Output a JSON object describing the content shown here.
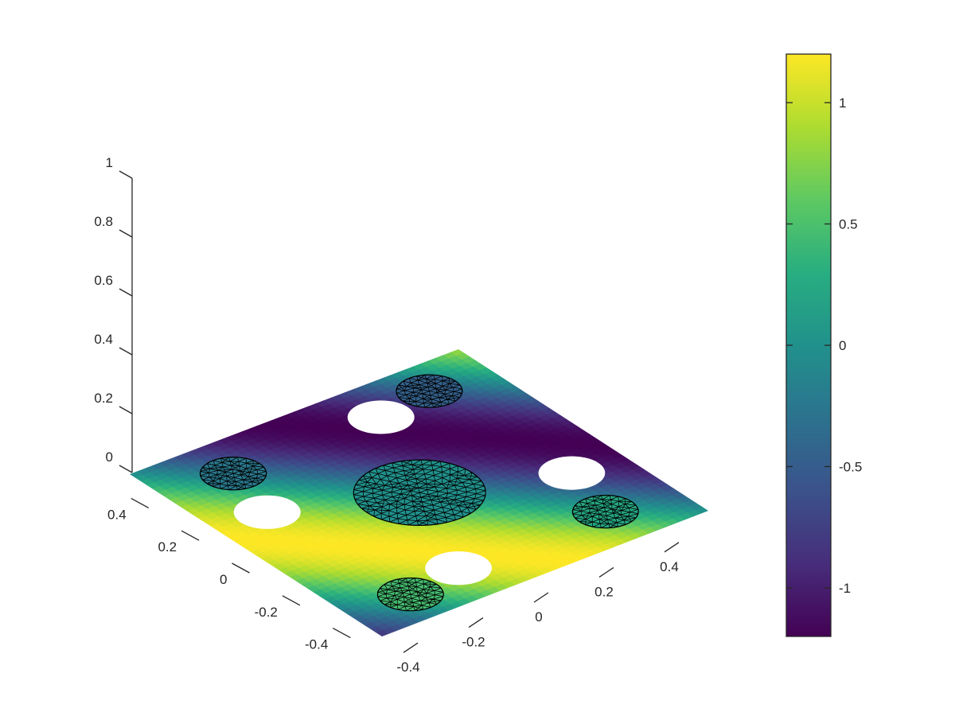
{
  "chart_data": {
    "type": "surface3d",
    "title": "",
    "xlabel": "",
    "ylabel": "",
    "zlabel": "",
    "x_range": [
      -0.5,
      0.5
    ],
    "y_range": [
      -0.5,
      0.5
    ],
    "z_range": [
      0,
      1
    ],
    "x_ticks": [
      "-0.4",
      "-0.2",
      "0",
      "0.2",
      "0.4"
    ],
    "y_ticks": [
      "-0.4",
      "-0.2",
      "0",
      "0.2",
      "0.4"
    ],
    "z_ticks": [
      "0",
      "0.2",
      "0.4",
      "0.6",
      "0.8",
      "1"
    ],
    "colormap": "viridis",
    "color_range": [
      -1.2,
      1.2
    ],
    "colorbar_ticks": [
      "1",
      "0.5",
      "0",
      "-0.5",
      "-1"
    ],
    "grid": false,
    "surface": "u(x,y) = 1.2*sin(2.5*pi*(x - y)/2) on unit square, z = 0",
    "holes": [
      {
        "x": 0.35,
        "y": -0.15,
        "r": 0.08
      },
      {
        "x": 0.15,
        "y": 0.35,
        "r": 0.08
      },
      {
        "x": -0.15,
        "y": -0.35,
        "r": 0.08
      },
      {
        "x": -0.35,
        "y": 0.15,
        "r": 0.08
      }
    ],
    "meshed_disks": [
      {
        "x": 0.0,
        "y": 0.0,
        "r": 0.16
      },
      {
        "x": 0.35,
        "y": 0.3,
        "r": 0.08
      },
      {
        "x": -0.35,
        "y": -0.3,
        "r": 0.08
      },
      {
        "x": 0.38,
        "y": -0.32,
        "r": 0.08
      },
      {
        "x": -0.38,
        "y": 0.32,
        "r": 0.08
      }
    ]
  }
}
